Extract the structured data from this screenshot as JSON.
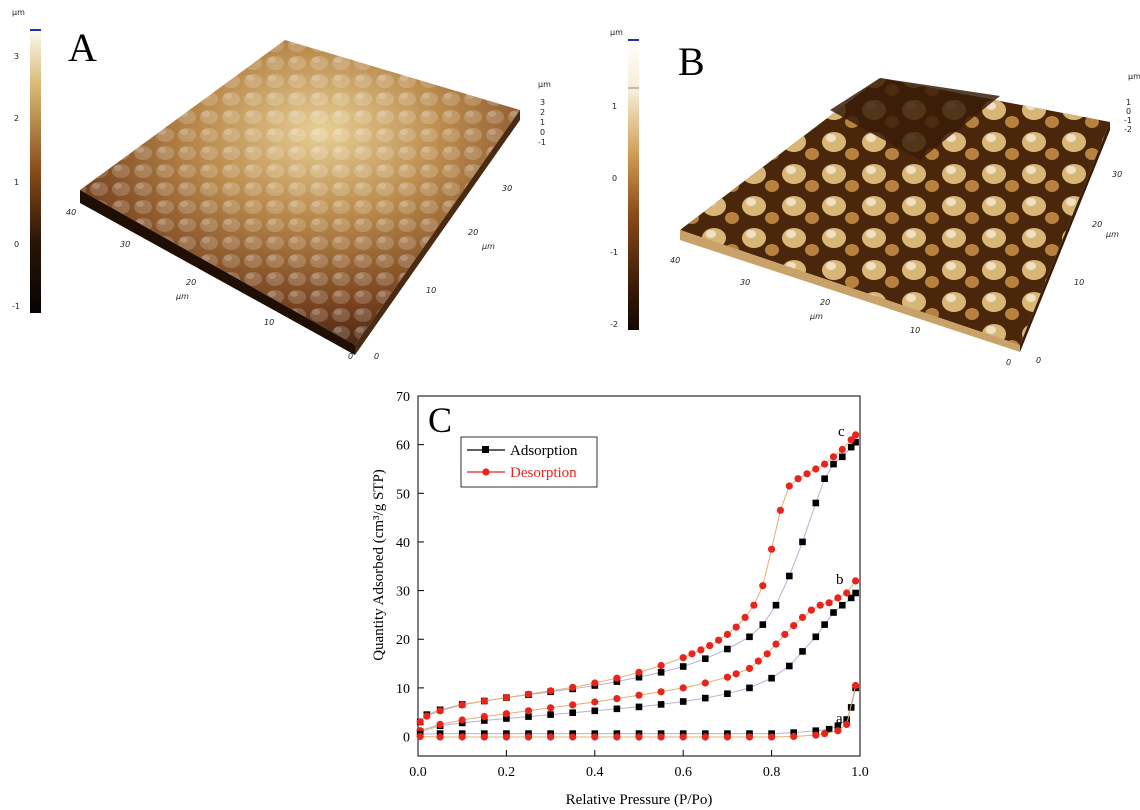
{
  "afm_a": {
    "letter": "A",
    "colorbar_unit": "µm",
    "colorbar_ticks": [
      "3",
      "2",
      "1",
      "0",
      "-1"
    ],
    "z_unit": "µm",
    "z_ticks": [
      "3",
      "2",
      "1",
      "0",
      "-1"
    ],
    "left_axis_ticks": [
      "40",
      "30",
      "20",
      "10",
      "0"
    ],
    "left_axis_unit": "µm",
    "right_axis_ticks": [
      "0",
      "10",
      "20",
      "30"
    ],
    "right_axis_unit": "µm",
    "colors": {
      "low": "#1a0c03",
      "mid": "#8a4d1c",
      "high": "#f4ead0"
    }
  },
  "afm_b": {
    "letter": "B",
    "colorbar_unit": "µm",
    "colorbar_ticks": [
      "1",
      "0",
      "-1",
      "-2"
    ],
    "z_unit": "µm",
    "z_ticks": [
      "1",
      "0",
      "-1",
      "-2"
    ],
    "left_axis_ticks": [
      "40",
      "30",
      "20",
      "10",
      "0"
    ],
    "left_axis_unit": "µm",
    "right_axis_ticks": [
      "0",
      "10",
      "20",
      "30"
    ],
    "right_axis_unit": "µm",
    "colors": {
      "low": "#2a1404",
      "mid": "#a0682a",
      "high": "#fbf6ea"
    }
  },
  "chart_data": {
    "type": "line",
    "panel_letter": "C",
    "xlabel": "Relative Pressure (P/Po)",
    "ylabel": "Quantity Adsorbed (cm³/g STP)",
    "xlim": [
      0.0,
      1.0
    ],
    "ylim": [
      -4,
      70
    ],
    "x_ticks": [
      "0.0",
      "0.2",
      "0.4",
      "0.6",
      "0.8",
      "1.0"
    ],
    "y_ticks": [
      "0",
      "10",
      "20",
      "30",
      "40",
      "50",
      "60",
      "70"
    ],
    "legend": {
      "position": "top-left",
      "entries": [
        "Adsorption",
        "Desorption"
      ]
    },
    "curve_labels": [
      "a",
      "b",
      "c"
    ],
    "colors": {
      "adsorption": "#000000",
      "desorption": "#e8241f"
    },
    "series": [
      {
        "name": "Adsorption",
        "sample": "c",
        "x": [
          0.005,
          0.02,
          0.05,
          0.1,
          0.15,
          0.2,
          0.25,
          0.3,
          0.35,
          0.4,
          0.45,
          0.5,
          0.55,
          0.6,
          0.65,
          0.7,
          0.75,
          0.78,
          0.81,
          0.84,
          0.87,
          0.9,
          0.92,
          0.94,
          0.96,
          0.98,
          0.99
        ],
        "values": [
          3.0,
          4.5,
          5.5,
          6.6,
          7.3,
          8.0,
          8.6,
          9.2,
          9.8,
          10.5,
          11.3,
          12.2,
          13.2,
          14.4,
          16.0,
          18.0,
          20.5,
          23.0,
          27.0,
          33.0,
          40.0,
          48.0,
          53.0,
          56.0,
          57.5,
          59.5,
          60.5
        ]
      },
      {
        "name": "Desorption",
        "sample": "c",
        "x": [
          0.99,
          0.98,
          0.96,
          0.94,
          0.92,
          0.9,
          0.88,
          0.86,
          0.84,
          0.82,
          0.8,
          0.78,
          0.76,
          0.74,
          0.72,
          0.7,
          0.68,
          0.66,
          0.64,
          0.62,
          0.6,
          0.55,
          0.5,
          0.45,
          0.4,
          0.35,
          0.3,
          0.25,
          0.2,
          0.15,
          0.1,
          0.05,
          0.02,
          0.005
        ],
        "values": [
          62.0,
          61.0,
          59.0,
          57.5,
          56.0,
          55.0,
          54.0,
          53.0,
          51.5,
          46.5,
          38.5,
          31.0,
          27.0,
          24.5,
          22.5,
          21.0,
          19.8,
          18.7,
          17.8,
          17.0,
          16.2,
          14.6,
          13.2,
          12.0,
          11.0,
          10.1,
          9.4,
          8.7,
          8.0,
          7.3,
          6.5,
          5.3,
          4.2,
          3.0
        ]
      },
      {
        "name": "Adsorption",
        "sample": "b",
        "x": [
          0.005,
          0.05,
          0.1,
          0.15,
          0.2,
          0.25,
          0.3,
          0.35,
          0.4,
          0.45,
          0.5,
          0.55,
          0.6,
          0.65,
          0.7,
          0.75,
          0.8,
          0.84,
          0.87,
          0.9,
          0.92,
          0.94,
          0.96,
          0.98,
          0.99
        ],
        "values": [
          1.0,
          2.2,
          2.8,
          3.3,
          3.7,
          4.1,
          4.5,
          4.9,
          5.3,
          5.7,
          6.1,
          6.6,
          7.2,
          7.9,
          8.8,
          10.0,
          12.0,
          14.5,
          17.5,
          20.5,
          23.0,
          25.5,
          27.0,
          28.5,
          29.5
        ]
      },
      {
        "name": "Desorption",
        "sample": "b",
        "x": [
          0.99,
          0.97,
          0.95,
          0.93,
          0.91,
          0.89,
          0.87,
          0.85,
          0.83,
          0.81,
          0.79,
          0.77,
          0.75,
          0.72,
          0.7,
          0.65,
          0.6,
          0.55,
          0.5,
          0.45,
          0.4,
          0.35,
          0.3,
          0.25,
          0.2,
          0.15,
          0.1,
          0.05,
          0.005
        ],
        "values": [
          32.0,
          29.5,
          28.5,
          27.5,
          27.0,
          26.0,
          24.5,
          22.8,
          21.0,
          19.0,
          17.0,
          15.5,
          14.0,
          12.9,
          12.2,
          11.0,
          10.0,
          9.2,
          8.5,
          7.8,
          7.1,
          6.5,
          5.9,
          5.3,
          4.7,
          4.1,
          3.4,
          2.5,
          1.2
        ]
      },
      {
        "name": "Adsorption",
        "sample": "a",
        "x": [
          0.005,
          0.05,
          0.1,
          0.15,
          0.2,
          0.25,
          0.3,
          0.35,
          0.4,
          0.45,
          0.5,
          0.55,
          0.6,
          0.65,
          0.7,
          0.75,
          0.8,
          0.85,
          0.9,
          0.93,
          0.95,
          0.97,
          0.98,
          0.99
        ],
        "values": [
          0.5,
          0.6,
          0.6,
          0.6,
          0.6,
          0.6,
          0.6,
          0.6,
          0.6,
          0.6,
          0.6,
          0.6,
          0.6,
          0.6,
          0.6,
          0.6,
          0.6,
          0.8,
          1.2,
          1.5,
          2.2,
          3.5,
          6.0,
          10.0
        ]
      },
      {
        "name": "Desorption",
        "sample": "a",
        "x": [
          0.99,
          0.97,
          0.95,
          0.92,
          0.9,
          0.85,
          0.8,
          0.75,
          0.7,
          0.65,
          0.6,
          0.55,
          0.5,
          0.45,
          0.4,
          0.35,
          0.3,
          0.25,
          0.2,
          0.15,
          0.1,
          0.05,
          0.005
        ],
        "values": [
          10.5,
          2.5,
          1.2,
          0.6,
          0.3,
          0.0,
          -0.1,
          -0.1,
          -0.1,
          -0.1,
          -0.1,
          -0.1,
          -0.1,
          -0.1,
          -0.1,
          -0.1,
          -0.1,
          -0.1,
          -0.1,
          -0.1,
          -0.1,
          -0.1,
          0.0
        ]
      }
    ]
  }
}
